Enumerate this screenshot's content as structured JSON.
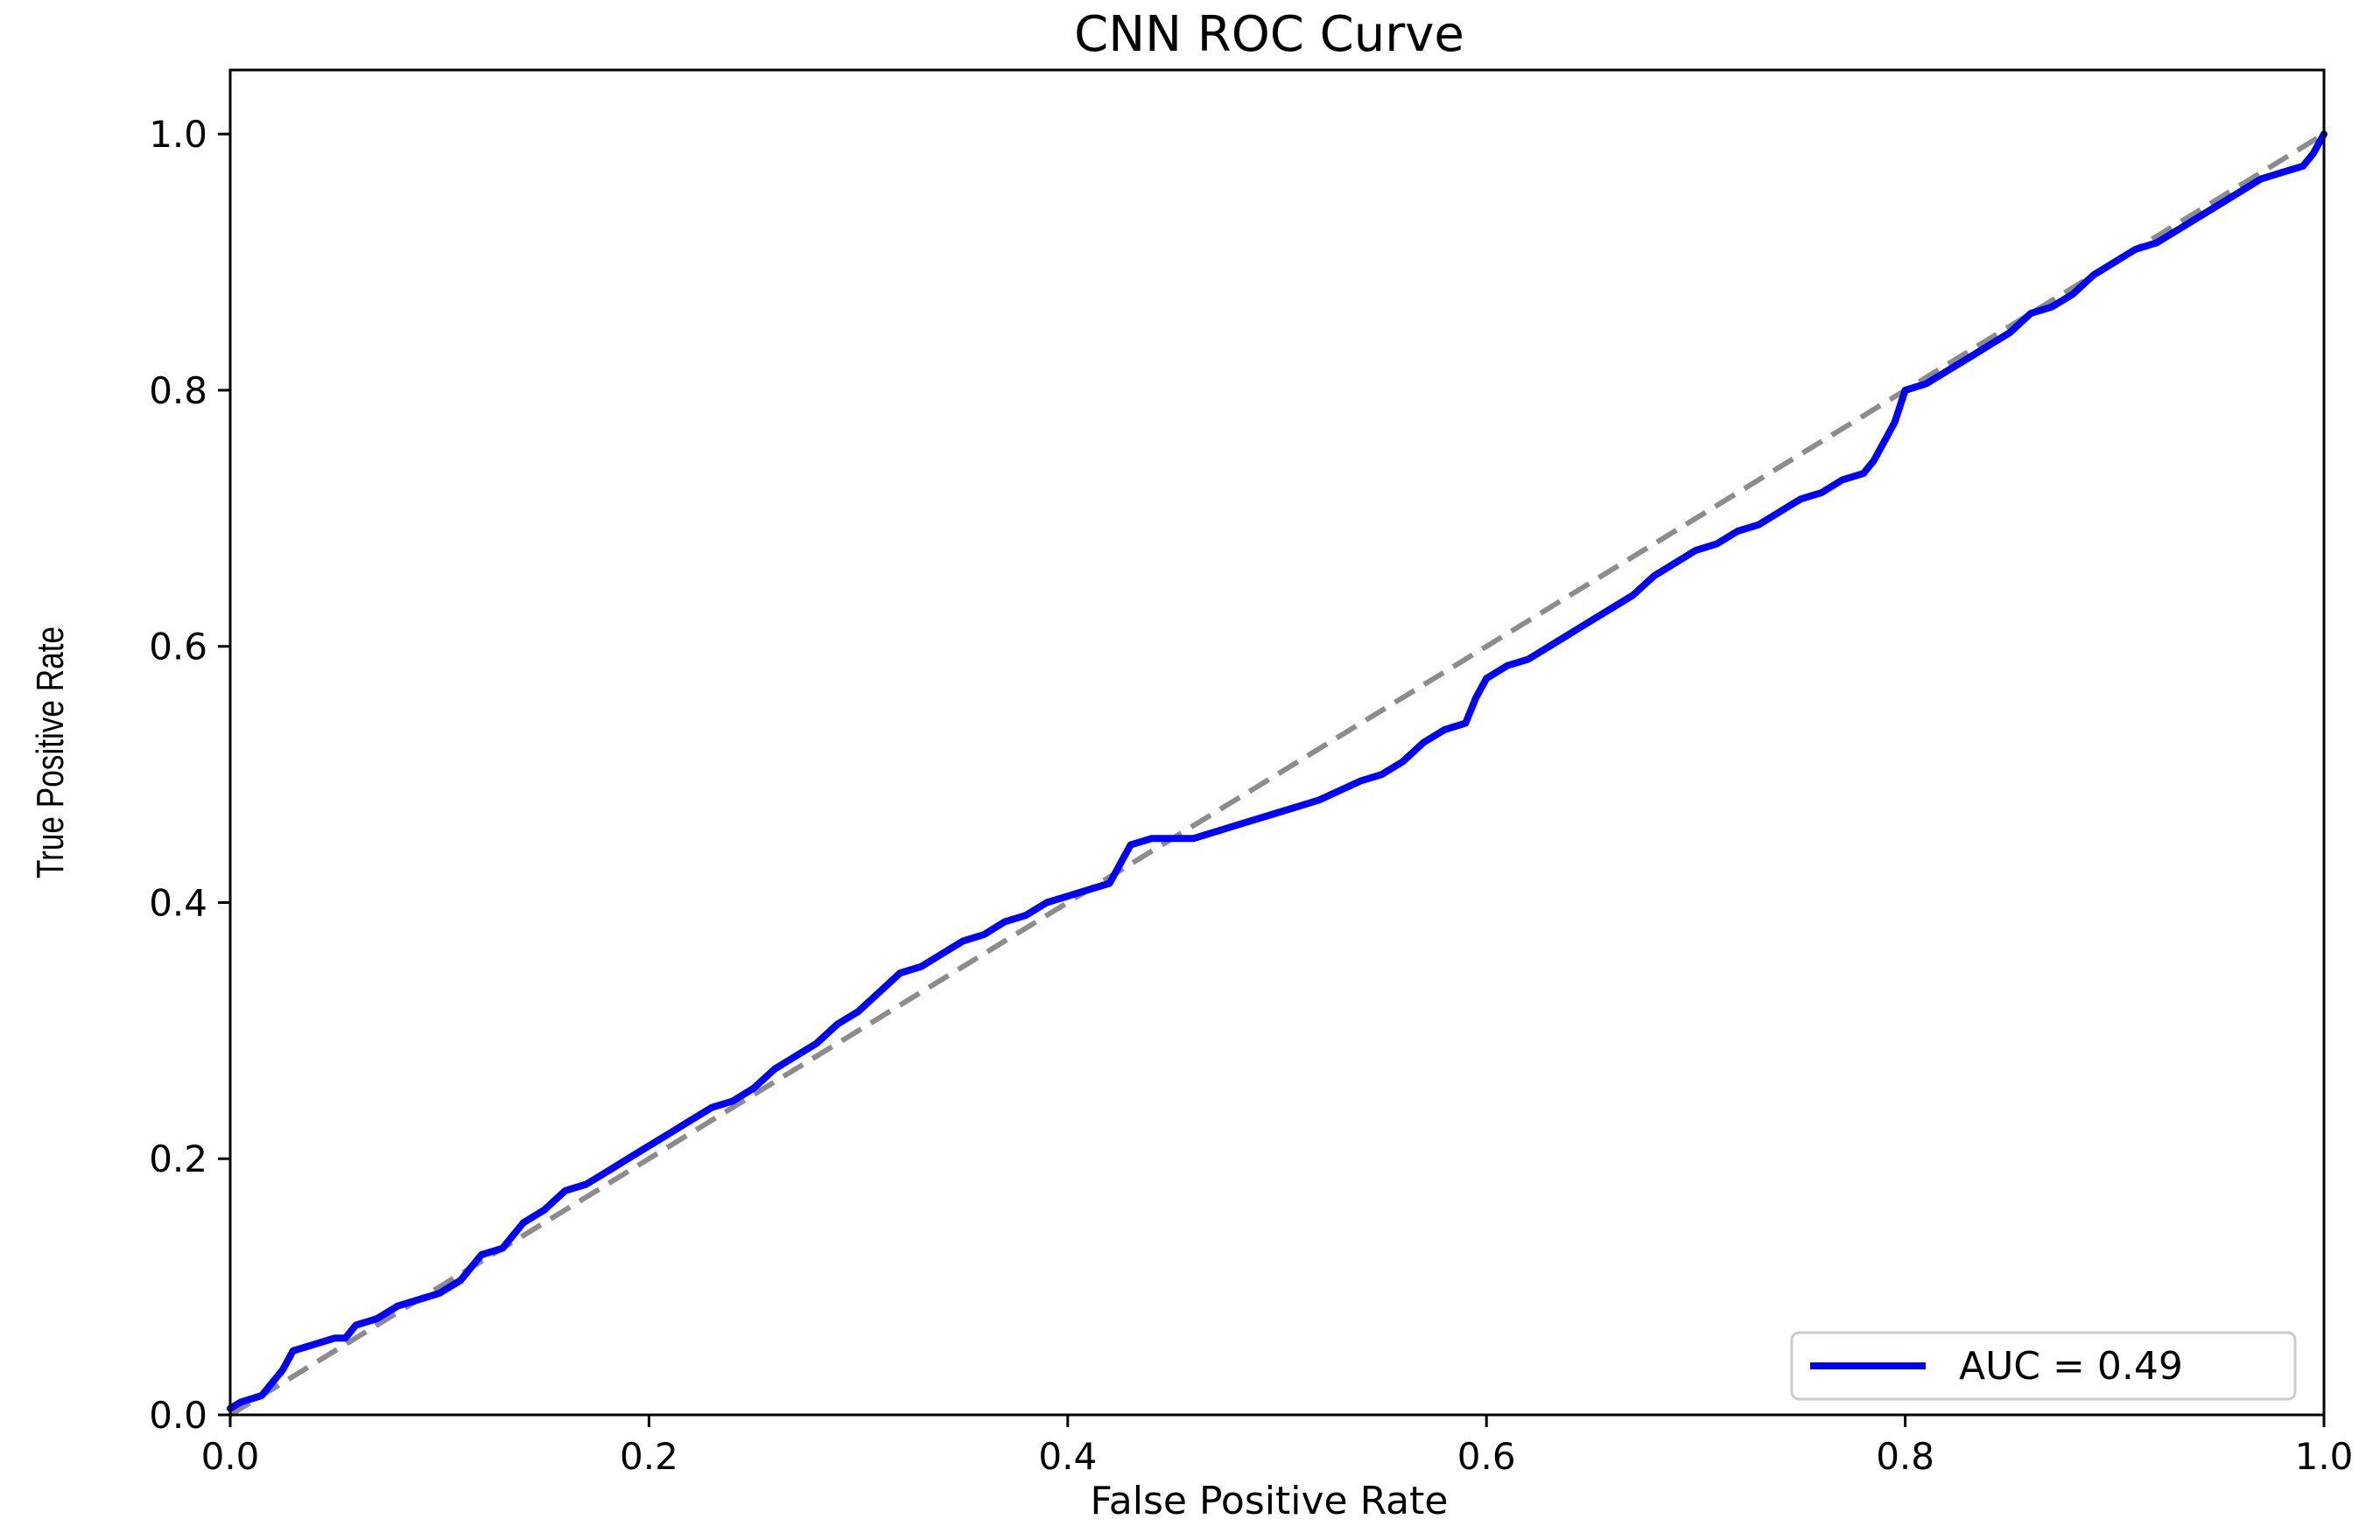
{
  "chart_data": {
    "type": "line",
    "title": "CNN ROC Curve",
    "xlabel": "False Positive Rate",
    "ylabel": "True Positive Rate",
    "xlim": [
      0.0,
      1.0
    ],
    "ylim": [
      0.0,
      1.05
    ],
    "x_ticks": [
      "0.0",
      "0.2",
      "0.4",
      "0.6",
      "0.8",
      "1.0"
    ],
    "y_ticks": [
      "0.0",
      "0.2",
      "0.4",
      "0.6",
      "0.8",
      "1.0"
    ],
    "grid": false,
    "legend_position": "bottom-right",
    "colors": {
      "roc": "#0000ff",
      "chance": "#8c8c8c"
    },
    "legend": [
      "AUC = 0.49"
    ],
    "series": [
      {
        "name": "AUC = 0.49",
        "style": "solid",
        "points": [
          [
            0.0,
            0.005
          ],
          [
            0.005,
            0.01
          ],
          [
            0.015,
            0.015
          ],
          [
            0.02,
            0.025
          ],
          [
            0.025,
            0.035
          ],
          [
            0.03,
            0.05
          ],
          [
            0.04,
            0.055
          ],
          [
            0.05,
            0.06
          ],
          [
            0.055,
            0.06
          ],
          [
            0.06,
            0.07
          ],
          [
            0.07,
            0.075
          ],
          [
            0.08,
            0.085
          ],
          [
            0.09,
            0.09
          ],
          [
            0.1,
            0.095
          ],
          [
            0.11,
            0.105
          ],
          [
            0.12,
            0.125
          ],
          [
            0.13,
            0.13
          ],
          [
            0.14,
            0.15
          ],
          [
            0.15,
            0.16
          ],
          [
            0.16,
            0.175
          ],
          [
            0.17,
            0.18
          ],
          [
            0.18,
            0.19
          ],
          [
            0.19,
            0.2
          ],
          [
            0.2,
            0.21
          ],
          [
            0.21,
            0.22
          ],
          [
            0.22,
            0.23
          ],
          [
            0.23,
            0.24
          ],
          [
            0.24,
            0.245
          ],
          [
            0.25,
            0.255
          ],
          [
            0.26,
            0.27
          ],
          [
            0.27,
            0.28
          ],
          [
            0.28,
            0.29
          ],
          [
            0.29,
            0.305
          ],
          [
            0.3,
            0.315
          ],
          [
            0.31,
            0.33
          ],
          [
            0.32,
            0.345
          ],
          [
            0.33,
            0.35
          ],
          [
            0.34,
            0.36
          ],
          [
            0.35,
            0.37
          ],
          [
            0.36,
            0.375
          ],
          [
            0.37,
            0.385
          ],
          [
            0.38,
            0.39
          ],
          [
            0.39,
            0.4
          ],
          [
            0.4,
            0.405
          ],
          [
            0.41,
            0.41
          ],
          [
            0.42,
            0.415
          ],
          [
            0.425,
            0.43
          ],
          [
            0.43,
            0.445
          ],
          [
            0.44,
            0.45
          ],
          [
            0.46,
            0.45
          ],
          [
            0.48,
            0.46
          ],
          [
            0.5,
            0.47
          ],
          [
            0.52,
            0.48
          ],
          [
            0.54,
            0.495
          ],
          [
            0.55,
            0.5
          ],
          [
            0.56,
            0.51
          ],
          [
            0.57,
            0.525
          ],
          [
            0.58,
            0.535
          ],
          [
            0.59,
            0.54
          ],
          [
            0.595,
            0.56
          ],
          [
            0.6,
            0.575
          ],
          [
            0.61,
            0.585
          ],
          [
            0.62,
            0.59
          ],
          [
            0.63,
            0.6
          ],
          [
            0.64,
            0.61
          ],
          [
            0.65,
            0.62
          ],
          [
            0.66,
            0.63
          ],
          [
            0.67,
            0.64
          ],
          [
            0.68,
            0.655
          ],
          [
            0.69,
            0.665
          ],
          [
            0.7,
            0.675
          ],
          [
            0.71,
            0.68
          ],
          [
            0.72,
            0.69
          ],
          [
            0.73,
            0.695
          ],
          [
            0.74,
            0.705
          ],
          [
            0.75,
            0.715
          ],
          [
            0.76,
            0.72
          ],
          [
            0.77,
            0.73
          ],
          [
            0.78,
            0.735
          ],
          [
            0.785,
            0.745
          ],
          [
            0.79,
            0.76
          ],
          [
            0.795,
            0.775
          ],
          [
            0.8,
            0.8
          ],
          [
            0.81,
            0.805
          ],
          [
            0.82,
            0.815
          ],
          [
            0.83,
            0.825
          ],
          [
            0.84,
            0.835
          ],
          [
            0.85,
            0.845
          ],
          [
            0.86,
            0.86
          ],
          [
            0.87,
            0.865
          ],
          [
            0.88,
            0.875
          ],
          [
            0.89,
            0.89
          ],
          [
            0.9,
            0.9
          ],
          [
            0.91,
            0.91
          ],
          [
            0.92,
            0.915
          ],
          [
            0.93,
            0.925
          ],
          [
            0.94,
            0.935
          ],
          [
            0.95,
            0.945
          ],
          [
            0.96,
            0.955
          ],
          [
            0.97,
            0.965
          ],
          [
            0.98,
            0.97
          ],
          [
            0.99,
            0.975
          ],
          [
            0.995,
            0.985
          ],
          [
            1.0,
            1.0
          ]
        ]
      },
      {
        "name": "",
        "style": "dashed",
        "points": [
          [
            0.0,
            0.0
          ],
          [
            1.0,
            1.0
          ]
        ]
      }
    ]
  }
}
